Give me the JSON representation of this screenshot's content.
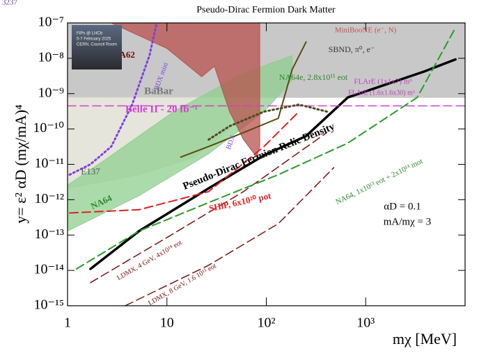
{
  "chart_data": {
    "type": "line",
    "title": "Pseudo-Dirac Fermion Dark Matter",
    "x_label": "mχ [MeV]",
    "y_label": "y= ε² αD (mχ/mA)⁴",
    "log_x": true,
    "log_y": true,
    "xlim": [
      1,
      10000
    ],
    "ylim": [
      1e-15,
      1e-07
    ],
    "xticks": [
      1,
      10,
      {
        "value": 100,
        "label": "10²"
      },
      {
        "value": 1000,
        "label": "10³"
      }
    ],
    "yticks": [
      {
        "value": 1e-15,
        "label": "10⁻¹⁵"
      },
      {
        "value": 1e-14,
        "label": "10⁻¹⁴"
      },
      {
        "value": 1e-13,
        "label": "10⁻¹³"
      },
      {
        "value": 1e-12,
        "label": "10⁻¹²"
      },
      {
        "value": 1e-11,
        "label": "10⁻¹¹"
      },
      {
        "value": 1e-10,
        "label": "10⁻¹⁰"
      },
      {
        "value": 1e-09,
        "label": "10⁻⁹"
      },
      {
        "value": 1e-08,
        "label": "10⁻⁸"
      },
      {
        "value": 1e-07,
        "label": "10⁻⁷"
      }
    ],
    "series": [
      {
        "name": "BaBar",
        "kind": "region",
        "color": "#c8c8c8",
        "x": [
          1,
          10000,
          10000,
          1
        ],
        "values": [
          7.8e-10,
          7.8e-10,
          1e-07,
          1e-07
        ]
      },
      {
        "name": "E137",
        "kind": "region",
        "color": "#dcdcd0",
        "x": [
          1,
          5.25,
          19,
          42.7,
          42.7,
          1
        ],
        "values": [
          2.1e-12,
          5.1e-12,
          1.6e-11,
          1e-10,
          7.8e-10,
          7.8e-10
        ]
      },
      {
        "name": "NA64",
        "kind": "region",
        "color": "#8fcf8f",
        "x": [
          1,
          5.25,
          26.3,
          95,
          182,
          182,
          58.9,
          11.7,
          2.35,
          1
        ],
        "values": [
          1.3e-13,
          1.3e-12,
          2e-11,
          3.1e-10,
          2.4e-09,
          1.2e-08,
          3.8e-09,
          3.1e-10,
          1.3e-11,
          2.6e-12
        ]
      },
      {
        "name": "NA62",
        "kind": "region",
        "color": "#b8524e",
        "x": [
          2.76,
          10,
          22.4,
          30,
          42.7,
          58.9,
          80,
          86,
          86
        ],
        "values": [
          1e-07,
          1.9e-08,
          3e-09,
          6e-09,
          3.1e-10,
          5e-11,
          1.6e-11,
          3.2e-11,
          1e-07
        ]
      },
      {
        "name": "Pseudo-Dirac Fermion Relic Density",
        "kind": "line",
        "dash": "solid",
        "width": 3.5,
        "color": "#000000",
        "x": [
          1.7,
          5.25,
          26.3,
          95,
          251,
          661,
          3860,
          8000
        ],
        "values": [
          1.1e-14,
          1.3e-13,
          2.1e-12,
          1.8e-11,
          6.3e-11,
          7.8e-10,
          4.2e-09,
          9.3e-09
        ]
      },
      {
        "name": "Belle II - 20 fb⁻¹",
        "kind": "line",
        "dash": "dashed",
        "width": 1.5,
        "color": "#d040d0",
        "x": [
          1,
          10000
        ],
        "values": [
          4.5e-10,
          4.5e-10
        ]
      },
      {
        "name": "BDX mini",
        "kind": "line",
        "dash": "dotted",
        "width": 3,
        "color": "#8040e0",
        "x": [
          1.05,
          1.7,
          2.76,
          4.47,
          6.68,
          7.85
        ],
        "values": [
          5.1e-12,
          1e-11,
          3.2e-11,
          4.9e-10,
          1.2e-08,
          9.1e-08
        ]
      },
      {
        "name": "SHiP, 6x10²⁰ pot",
        "kind": "line",
        "dash": "dashed",
        "width": 2,
        "color": "#e02020",
        "x": [
          1.05,
          5.25,
          26.3,
          95,
          213
        ],
        "values": [
          4.2e-13,
          5.2e-13,
          1.7e-12,
          3.2e-11,
          3.1e-10
        ]
      },
      {
        "name": "LDMX, 4 GeV, 4x10¹⁴ eot",
        "kind": "line",
        "dash": "dashed",
        "width": 1.5,
        "color": "#7a1010",
        "x": [
          1.7,
          10,
          58.9,
          407
        ],
        "values": [
          4.5e-15,
          8.5e-14,
          1.7e-12,
          7.9e-11
        ]
      },
      {
        "name": "LDMX, 8 GeV, 1.6 10¹⁵ eot",
        "kind": "line",
        "dash": "dashed",
        "width": 1.5,
        "color": "#7a1010",
        "x": [
          3.8,
          26.3,
          132,
          478
        ],
        "values": [
          1e-15,
          1.4e-14,
          2.1e-13,
          8.1e-12
        ]
      },
      {
        "name": "NA64, 1x10¹³ eot + 2x10¹³ mot",
        "kind": "line",
        "dash": "dashed",
        "width": 2,
        "color": "#2a9a2a",
        "x": [
          1.23,
          5.25,
          26.3,
          132,
          661,
          3300,
          8000
        ],
        "values": [
          1.1e-14,
          1.3e-13,
          8.3e-13,
          5.1e-12,
          4e-11,
          7.8e-10,
          7.3e-08
        ]
      },
      {
        "name": "SBND, π⁰, e⁻",
        "kind": "line",
        "dash": "dotted",
        "width": 3,
        "color": "#4a4a20",
        "x": [
          26.3,
          42.7,
          95,
          213,
          407
        ],
        "values": [
          5e-11,
          1.2e-10,
          3.1e-10,
          4.9e-10,
          3.1e-10
        ]
      },
      {
        "name": "NA64e, 2.8x10¹¹ eot",
        "kind": "line",
        "dash": "solid",
        "width": 2,
        "color": "#5a4a10",
        "x": [
          13.8,
          26.3,
          58.9,
          132,
          182,
          251
        ],
        "values": [
          1.6e-11,
          3.2e-11,
          7.9e-11,
          2e-10,
          4.8e-09,
          2.9e-08
        ]
      }
    ],
    "annotations": [
      "αD = 0.1",
      "mA/mχ = 3",
      "MiniBooNE (e⁻, N)",
      "BDX",
      "FLArE (1x1x7) m³",
      "FLArE (1.6x1.6x30) m³",
      "3237"
    ],
    "inset": [
      "FIPs @ LHCb",
      "5-7 February 2025",
      "CERN, Council Room"
    ]
  }
}
